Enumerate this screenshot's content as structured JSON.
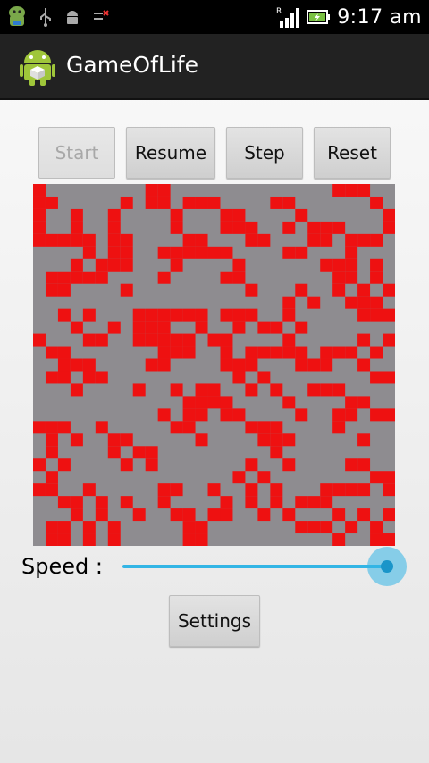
{
  "status_bar": {
    "time": "9:17 am",
    "signal_label": "R",
    "left_icons": [
      "android-robot-icon",
      "usb-icon",
      "android-debug-icon",
      "data-transfer-icon"
    ],
    "right_icons": [
      "signal-bars-icon",
      "battery-charging-icon"
    ]
  },
  "app": {
    "title": "GameOfLife",
    "icon": "android-app-icon"
  },
  "controls": {
    "start_label": "Start",
    "start_enabled": false,
    "resume_label": "Resume",
    "step_label": "Step",
    "reset_label": "Reset"
  },
  "board": {
    "columns": 29,
    "rows": 29,
    "live_color": "#ee1111",
    "dead_color": "#8e8c90",
    "live_cells": [
      [
        0,
        0
      ],
      [
        0,
        1
      ],
      [
        1,
        1
      ],
      [
        0,
        2
      ],
      [
        3,
        2
      ],
      [
        0,
        3
      ],
      [
        3,
        3
      ],
      [
        6,
        3
      ],
      [
        0,
        4
      ],
      [
        1,
        4
      ],
      [
        2,
        4
      ],
      [
        3,
        4
      ],
      [
        4,
        4
      ],
      [
        6,
        4
      ],
      [
        7,
        4
      ],
      [
        4,
        5
      ],
      [
        6,
        5
      ],
      [
        7,
        5
      ],
      [
        9,
        0
      ],
      [
        10,
        0
      ],
      [
        9,
        1
      ],
      [
        10,
        1
      ],
      [
        11,
        2
      ],
      [
        11,
        3
      ],
      [
        12,
        4
      ],
      [
        13,
        4
      ],
      [
        12,
        5
      ],
      [
        13,
        5
      ],
      [
        14,
        5
      ],
      [
        15,
        5
      ],
      [
        16,
        6
      ],
      [
        15,
        7
      ],
      [
        16,
        7
      ],
      [
        17,
        8
      ],
      [
        12,
        1
      ],
      [
        13,
        1
      ],
      [
        14,
        1
      ],
      [
        15,
        2
      ],
      [
        16,
        2
      ],
      [
        15,
        3
      ],
      [
        16,
        3
      ],
      [
        17,
        4
      ],
      [
        19,
        1
      ],
      [
        20,
        1
      ],
      [
        21,
        2
      ],
      [
        22,
        3
      ],
      [
        23,
        3
      ],
      [
        24,
        3
      ],
      [
        23,
        4
      ],
      [
        22,
        4
      ],
      [
        24,
        0
      ],
      [
        25,
        0
      ],
      [
        26,
        0
      ],
      [
        27,
        1
      ],
      [
        28,
        2
      ],
      [
        28,
        3
      ],
      [
        27,
        4
      ],
      [
        26,
        4
      ],
      [
        25,
        4
      ],
      [
        25,
        5
      ],
      [
        25,
        6
      ],
      [
        24,
        6
      ],
      [
        23,
        6
      ],
      [
        27,
        6
      ],
      [
        27,
        7
      ],
      [
        28,
        8
      ],
      [
        5,
        6
      ],
      [
        6,
        6
      ],
      [
        4,
        7
      ],
      [
        5,
        7
      ],
      [
        7,
        6
      ],
      [
        10,
        5
      ],
      [
        11,
        5
      ],
      [
        11,
        6
      ],
      [
        10,
        7
      ],
      [
        1,
        7
      ],
      [
        2,
        7
      ],
      [
        1,
        8
      ],
      [
        3,
        6
      ],
      [
        3,
        7
      ],
      [
        2,
        8
      ],
      [
        7,
        8
      ],
      [
        20,
        5
      ],
      [
        21,
        5
      ],
      [
        24,
        7
      ],
      [
        24,
        8
      ],
      [
        25,
        7
      ],
      [
        26,
        8
      ],
      [
        26,
        9
      ],
      [
        27,
        9
      ],
      [
        27,
        10
      ],
      [
        26,
        10
      ],
      [
        28,
        10
      ],
      [
        25,
        9
      ],
      [
        21,
        8
      ],
      [
        22,
        9
      ],
      [
        20,
        9
      ],
      [
        2,
        10
      ],
      [
        4,
        10
      ],
      [
        8,
        10
      ],
      [
        9,
        10
      ],
      [
        10,
        10
      ],
      [
        11,
        10
      ],
      [
        12,
        10
      ],
      [
        8,
        11
      ],
      [
        9,
        11
      ],
      [
        8,
        12
      ],
      [
        9,
        12
      ],
      [
        10,
        12
      ],
      [
        11,
        12
      ],
      [
        13,
        10
      ],
      [
        13,
        11
      ],
      [
        15,
        10
      ],
      [
        16,
        10
      ],
      [
        17,
        10
      ],
      [
        18,
        11
      ],
      [
        19,
        11
      ],
      [
        20,
        10
      ],
      [
        21,
        11
      ],
      [
        0,
        12
      ],
      [
        1,
        13
      ],
      [
        2,
        13
      ],
      [
        2,
        14
      ],
      [
        3,
        14
      ],
      [
        4,
        14
      ],
      [
        4,
        15
      ],
      [
        1,
        15
      ],
      [
        2,
        15
      ],
      [
        3,
        16
      ],
      [
        5,
        15
      ],
      [
        9,
        14
      ],
      [
        10,
        13
      ],
      [
        10,
        14
      ],
      [
        11,
        13
      ],
      [
        12,
        12
      ],
      [
        12,
        13
      ],
      [
        13,
        11
      ],
      [
        15,
        12
      ],
      [
        15,
        13
      ],
      [
        16,
        14
      ],
      [
        16,
        11
      ],
      [
        17,
        13
      ],
      [
        18,
        13
      ],
      [
        19,
        13
      ],
      [
        17,
        14
      ],
      [
        20,
        12
      ],
      [
        20,
        13
      ],
      [
        21,
        13
      ],
      [
        21,
        14
      ],
      [
        22,
        14
      ],
      [
        23,
        13
      ],
      [
        24,
        13
      ],
      [
        25,
        13
      ],
      [
        23,
        14
      ],
      [
        26,
        14
      ],
      [
        27,
        15
      ],
      [
        28,
        15
      ],
      [
        8,
        16
      ],
      [
        11,
        16
      ],
      [
        13,
        16
      ],
      [
        12,
        17
      ],
      [
        13,
        17
      ],
      [
        12,
        18
      ],
      [
        14,
        16
      ],
      [
        14,
        17
      ],
      [
        15,
        17
      ],
      [
        15,
        18
      ],
      [
        16,
        18
      ],
      [
        17,
        16
      ],
      [
        16,
        15
      ],
      [
        18,
        15
      ],
      [
        19,
        16
      ],
      [
        22,
        16
      ],
      [
        23,
        16
      ],
      [
        24,
        16
      ],
      [
        25,
        17
      ],
      [
        26,
        17
      ],
      [
        27,
        18
      ],
      [
        28,
        18
      ],
      [
        0,
        19
      ],
      [
        1,
        19
      ],
      [
        2,
        19
      ],
      [
        3,
        20
      ],
      [
        1,
        20
      ],
      [
        1,
        21
      ],
      [
        0,
        22
      ],
      [
        2,
        22
      ],
      [
        1,
        23
      ],
      [
        5,
        19
      ],
      [
        6,
        20
      ],
      [
        7,
        20
      ],
      [
        6,
        21
      ],
      [
        7,
        22
      ],
      [
        8,
        21
      ],
      [
        9,
        21
      ],
      [
        9,
        22
      ],
      [
        11,
        19
      ],
      [
        10,
        18
      ],
      [
        12,
        19
      ],
      [
        13,
        20
      ],
      [
        13,
        18
      ],
      [
        17,
        19
      ],
      [
        18,
        19
      ],
      [
        19,
        19
      ],
      [
        18,
        20
      ],
      [
        19,
        20
      ],
      [
        20,
        20
      ],
      [
        19,
        21
      ],
      [
        20,
        22
      ],
      [
        17,
        22
      ],
      [
        21,
        18
      ],
      [
        20,
        17
      ],
      [
        24,
        18
      ],
      [
        25,
        18
      ],
      [
        24,
        19
      ],
      [
        26,
        20
      ],
      [
        25,
        22
      ],
      [
        26,
        22
      ],
      [
        27,
        23
      ],
      [
        28,
        23
      ],
      [
        28,
        24
      ],
      [
        26,
        24
      ],
      [
        25,
        24
      ],
      [
        24,
        24
      ],
      [
        23,
        24
      ],
      [
        22,
        25
      ],
      [
        23,
        25
      ],
      [
        24,
        26
      ],
      [
        0,
        24
      ],
      [
        1,
        24
      ],
      [
        2,
        25
      ],
      [
        3,
        25
      ],
      [
        3,
        26
      ],
      [
        2,
        27
      ],
      [
        1,
        27
      ],
      [
        1,
        28
      ],
      [
        2,
        28
      ],
      [
        4,
        27
      ],
      [
        4,
        28
      ],
      [
        5,
        26
      ],
      [
        6,
        27
      ],
      [
        6,
        28
      ],
      [
        4,
        24
      ],
      [
        5,
        25
      ],
      [
        7,
        25
      ],
      [
        8,
        26
      ],
      [
        10,
        24
      ],
      [
        11,
        24
      ],
      [
        10,
        25
      ],
      [
        11,
        26
      ],
      [
        12,
        26
      ],
      [
        13,
        27
      ],
      [
        12,
        27
      ],
      [
        12,
        28
      ],
      [
        13,
        28
      ],
      [
        14,
        24
      ],
      [
        15,
        25
      ],
      [
        14,
        26
      ],
      [
        15,
        26
      ],
      [
        16,
        23
      ],
      [
        17,
        24
      ],
      [
        17,
        25
      ],
      [
        18,
        23
      ],
      [
        19,
        24
      ],
      [
        19,
        25
      ],
      [
        18,
        26
      ],
      [
        21,
        25
      ],
      [
        20,
        26
      ],
      [
        21,
        27
      ],
      [
        22,
        27
      ],
      [
        23,
        27
      ],
      [
        24,
        28
      ],
      [
        25,
        27
      ],
      [
        26,
        26
      ],
      [
        27,
        27
      ],
      [
        28,
        28
      ],
      [
        27,
        28
      ],
      [
        28,
        26
      ],
      [
        6,
        2
      ],
      [
        7,
        1
      ],
      [
        13,
        1
      ],
      [
        17,
        3
      ],
      [
        18,
        4
      ],
      [
        20,
        3
      ],
      [
        5,
        12
      ],
      [
        6,
        11
      ],
      [
        3,
        11
      ],
      [
        4,
        12
      ],
      [
        14,
        12
      ],
      [
        15,
        14
      ],
      [
        10,
        11
      ],
      [
        26,
        12
      ],
      [
        28,
        12
      ],
      [
        27,
        13
      ]
    ]
  },
  "speed": {
    "label": "Speed :",
    "value": 1.0
  },
  "settings": {
    "label": "Settings"
  },
  "colors": {
    "accent": "#33b5e5",
    "action_bar": "#222222",
    "status_bar": "#000000"
  }
}
